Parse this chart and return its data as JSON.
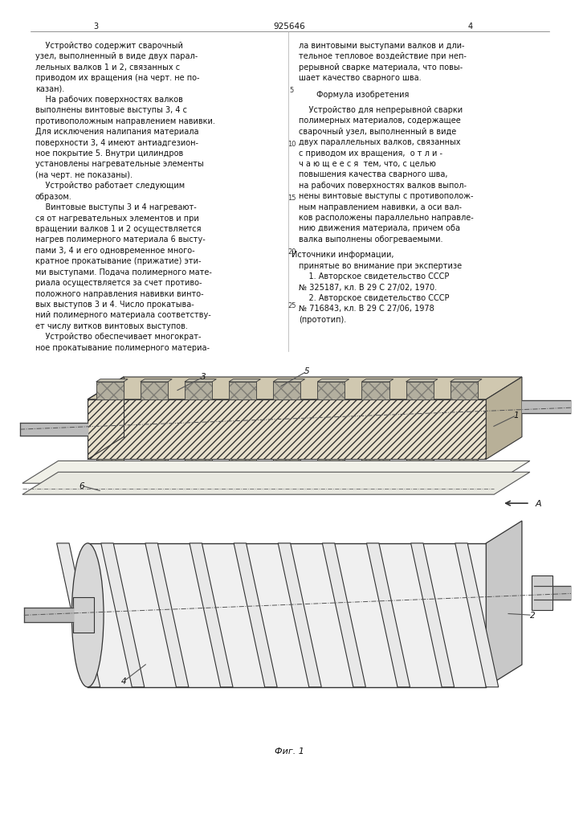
{
  "page_width": 7.07,
  "page_height": 10.0,
  "background": "#ffffff",
  "col1_lines": [
    "    Устройство содержит сварочный",
    "узел, выполненный в виде двух парал-",
    "лельных валков 1 и 2, связанных с",
    "приводом их вращения (на черт. не по-",
    "казан).",
    "    На рабочих поверхностях валков",
    "выполнены винтовые выступы 3, 4 с",
    "противоположным направлением навивки.",
    "Для исключения налипания материала",
    "поверхности 3, 4 имеют антиадгезион-",
    "ное покрытие 5. Внутри цилиндров",
    "установлены нагревательные элементы",
    "(на черт. не показаны).",
    "    Устройство работает следующим",
    "образом.",
    "    Винтовые выступы 3 и 4 нагревают-",
    "ся от нагревательных элементов и при",
    "вращении валков 1 и 2 осуществляется",
    "нагрев полимерного материала 6 высту-",
    "пами 3, 4 и его одновременное много-",
    "кратное прокатывание (прижатие) эти-",
    "ми выступами. Подача полимерного мате-",
    "риала осуществляется за счет противо-",
    "положного направления навивки винто-",
    "вых выступов 3 и 4. Число прокатыва-",
    "ний полимерного материала соответству-",
    "ет числу витков винтовых выступов.",
    "    Устройство обеспечивает многократ-",
    "ное прокатывание полимерного материа-"
  ],
  "col2_lines_top": [
    "ла винтовыми выступами валков и дли-",
    "тельное тепловое воздействие при неп-",
    "рерывной сварке материала, что повы-",
    "шает качество сварного шва."
  ],
  "formula_title": "Формула изобретения",
  "formula_lines": [
    "    Устройство для непрерывной сварки",
    "полимерных материалов, содержащее",
    "сварочный узел, выполненный в виде",
    "двух параллельных валков, связанных",
    "с приводом их вращения,  о т л и -",
    "ч а ю щ е е с я  тем, что, с целью",
    "повышения качества сварного шва,",
    "на рабочих поверхностях валков выпол-",
    "нены винтовые выступы с противополож-",
    "ным направлением навивки, а оси вал-",
    "ков расположены параллельно направле-",
    "нию движения материала, причем оба",
    "валка выполнены обогреваемыми."
  ],
  "sources_title": "Источники информации,",
  "sources_lines": [
    "принятые во внимание при экспертизе",
    "    1. Авторское свидетельство СССР",
    "№ 325187, кл. В 29 С 27/02, 1970.",
    "    2. Авторское свидетельство СССР",
    "№ 716843, кл. В 29 С 27/06, 1978",
    "(прототип)."
  ],
  "fig_caption": "Фиг. 1",
  "line_numbers": [
    "5",
    "10",
    "15",
    "20",
    "25"
  ]
}
